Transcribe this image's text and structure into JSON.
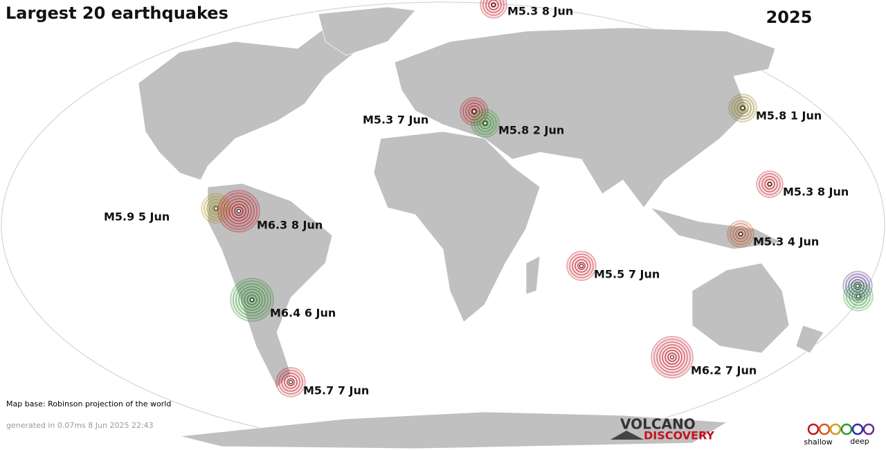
{
  "header": {
    "title": "Largest 20 earthquakes",
    "year": "2025"
  },
  "earthquakes": [
    {
      "label": "M5.3  8 Jun",
      "color": "#c0141e"
    },
    {
      "label": "M5.8  1 Jun",
      "color": "#8a7a1e"
    },
    {
      "label": "M5.3  7 Jun",
      "color": "#c0141e"
    },
    {
      "label": "M5.8  2 Jun",
      "color": "#2a9a2a"
    },
    {
      "label": "M5.3  8 Jun",
      "color": "#c0141e"
    },
    {
      "label": "M5.9  5 Jun",
      "color": "#a8901e"
    },
    {
      "label": "M6.3  8 Jun",
      "color": "#c0141e"
    },
    {
      "label": "M5.3  4 Jun",
      "color": "#c04a1e"
    },
    {
      "label": "M5.5  7 Jun",
      "color": "#c0141e"
    },
    {
      "label": "M6.4  6 Jun",
      "color": "#2a8a2a"
    },
    {
      "label": "M6.2  7 Jun",
      "color": "#c0141e"
    },
    {
      "label": "M5.7  7 Jun",
      "color": "#c0141e"
    },
    {
      "color": "#4a2a8a"
    },
    {
      "color": "#2a9a2a"
    }
  ],
  "footer": {
    "map_base": "Map base: Robinson projection of the world",
    "generated": "generated in 0.07ms  8 Jun 2025 22:43"
  },
  "logo": {
    "line1": "VOLCANO",
    "line2": "DISCOVERY"
  },
  "depth_legend": {
    "shallow": "shallow",
    "deep": "deep"
  }
}
